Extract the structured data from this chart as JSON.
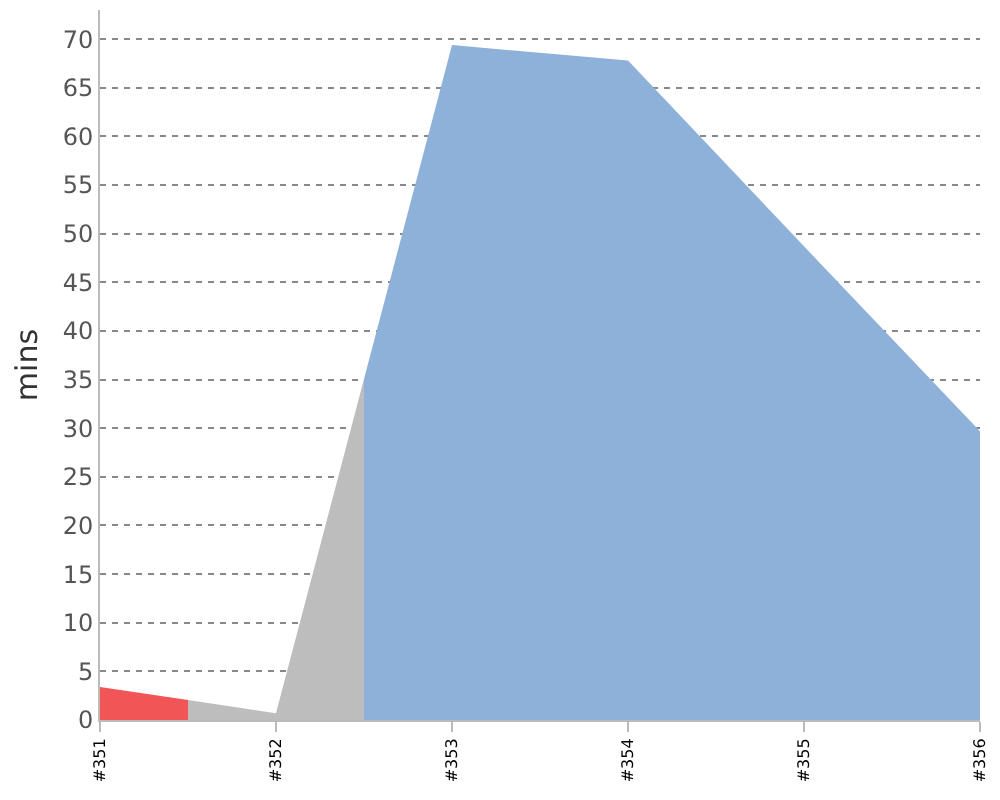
{
  "chart_data": {
    "type": "area",
    "ylabel": "mins",
    "series": [
      {
        "color": "#f25555",
        "x": [
          351,
          351.5
        ],
        "values": [
          3.4,
          2.05
        ]
      },
      {
        "color": "#bdbdbd",
        "x": [
          351.5,
          352,
          352.5
        ],
        "values": [
          2.05,
          0.7,
          35.05
        ]
      },
      {
        "color": "#8eb1da",
        "x": [
          352.5,
          353,
          354,
          355,
          356
        ],
        "values": [
          35.05,
          69.4,
          67.8,
          48.7,
          29.7
        ]
      }
    ],
    "xlim": [
      351,
      356
    ],
    "xticks": [
      {
        "value": 351,
        "label": "#351"
      },
      {
        "value": 352,
        "label": "#352"
      },
      {
        "value": 353,
        "label": "#353"
      },
      {
        "value": 354,
        "label": "#354"
      },
      {
        "value": 355,
        "label": "#355"
      },
      {
        "value": 356,
        "label": "#356"
      }
    ],
    "ylim": [
      0,
      73
    ],
    "yticks": [
      0,
      5,
      10,
      15,
      20,
      25,
      30,
      35,
      40,
      45,
      50,
      55,
      60,
      65,
      70
    ],
    "grid": "y"
  }
}
